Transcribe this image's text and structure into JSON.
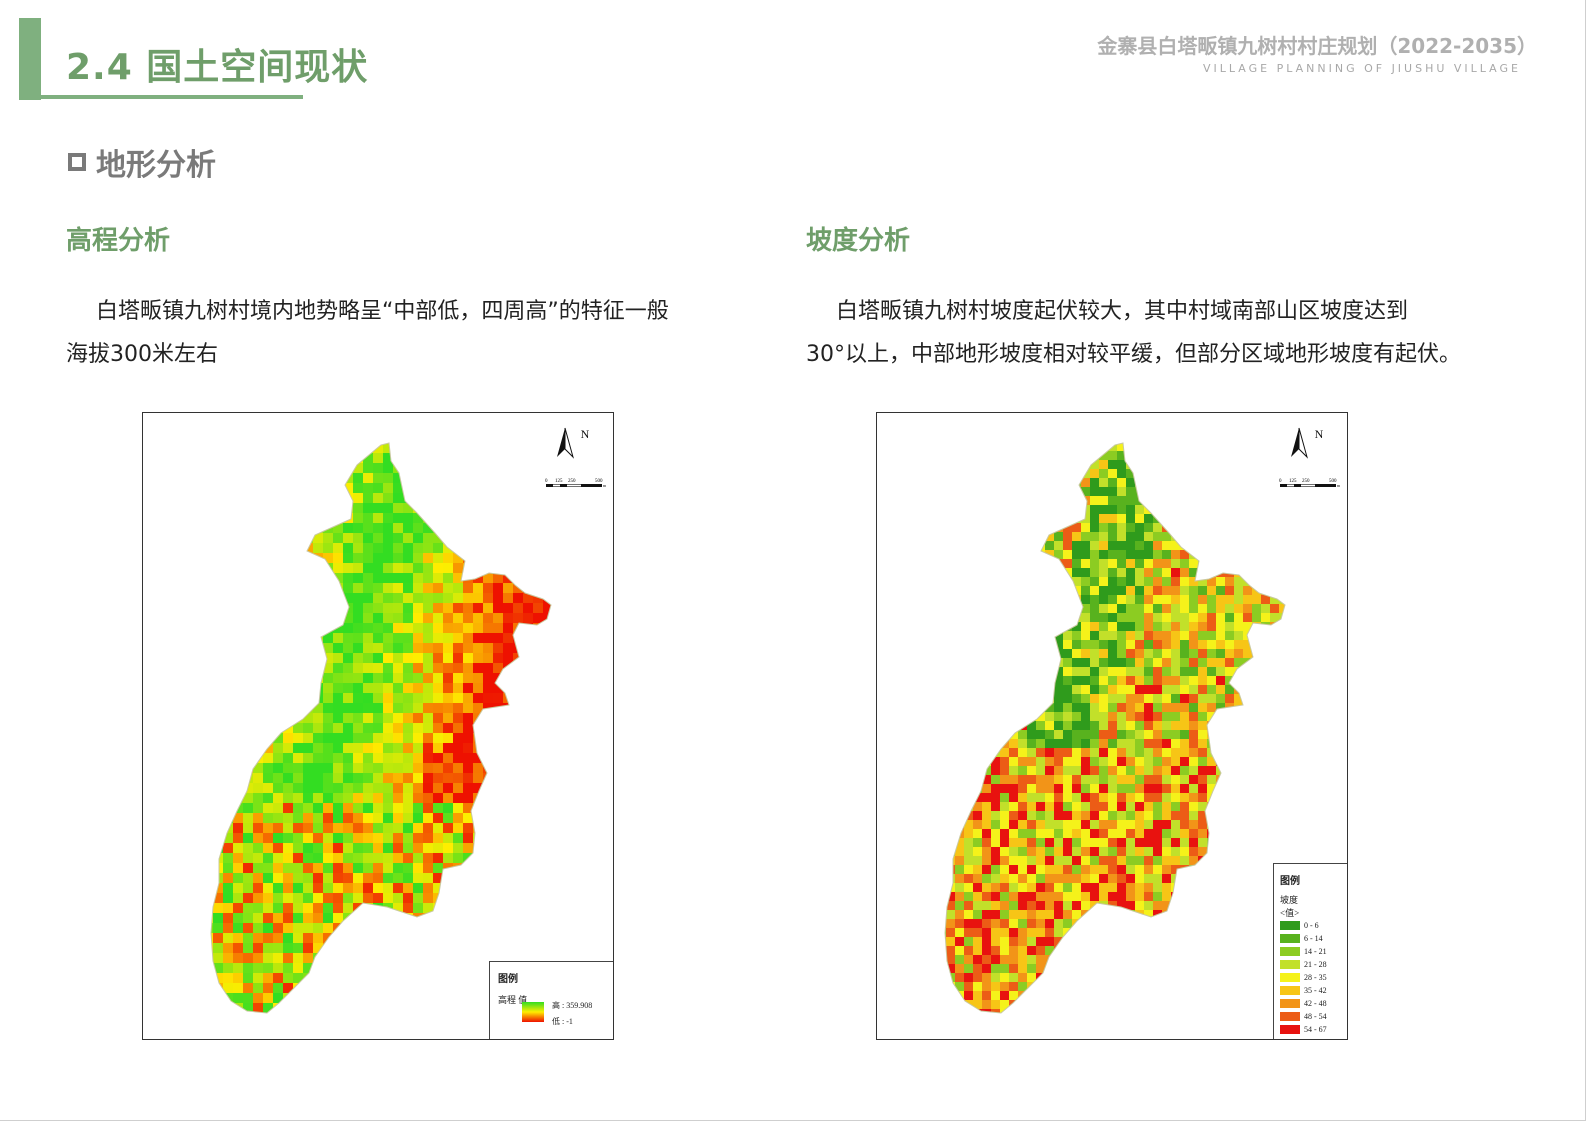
{
  "header": {
    "section_title": "2.4 国土空间现状",
    "doc_title": "金寨县白塔畈镇九树村村庄规划（2022-2035）",
    "doc_subtitle": "VILLAGE PLANNING OF JIUSHU VILLAGE"
  },
  "subsection": {
    "title": "地形分析",
    "icon": "square-icon"
  },
  "elevation": {
    "heading": "高程分析",
    "text_line1": "白塔畈镇九树村境内地势略呈“中部低，四周高”的特征一般",
    "text_line2": "海拔300米左右",
    "map": {
      "north_label": "N",
      "scale_labels": [
        "0",
        "125",
        "250",
        "500"
      ],
      "scale_unit": "m",
      "legend": {
        "title": "图例",
        "field": "高程 值",
        "high_label": "高 : 359.908",
        "low_label": "低 : -1",
        "colors": [
          "#33dd22",
          "#ffee00",
          "#ee1100"
        ]
      }
    }
  },
  "slope": {
    "heading": "坡度分析",
    "text_line1": "白塔畈镇九树村坡度起伏较大，其中村域南部山区坡度达到",
    "text_line2": "30°以上，中部地形坡度相对较平缓，但部分区域地形坡度有起伏。",
    "map": {
      "north_label": "N",
      "scale_labels": [
        "0",
        "125",
        "250",
        "500"
      ],
      "scale_unit": "m",
      "legend": {
        "title": "图例",
        "field": "坡度",
        "value_label": "<值>",
        "classes": [
          {
            "label": "0 - 6",
            "color": "#2f9b1c"
          },
          {
            "label": "6 - 14",
            "color": "#58b21e"
          },
          {
            "label": "14 - 21",
            "color": "#8ccc22"
          },
          {
            "label": "21 - 28",
            "color": "#c2e02a"
          },
          {
            "label": "28 - 35",
            "color": "#f5f21a"
          },
          {
            "label": "35 - 42",
            "color": "#f7c516"
          },
          {
            "label": "42 - 48",
            "color": "#f29418"
          },
          {
            "label": "48 - 54",
            "color": "#ec5c16"
          },
          {
            "label": "54 - 67",
            "color": "#e8120f"
          }
        ]
      }
    }
  }
}
